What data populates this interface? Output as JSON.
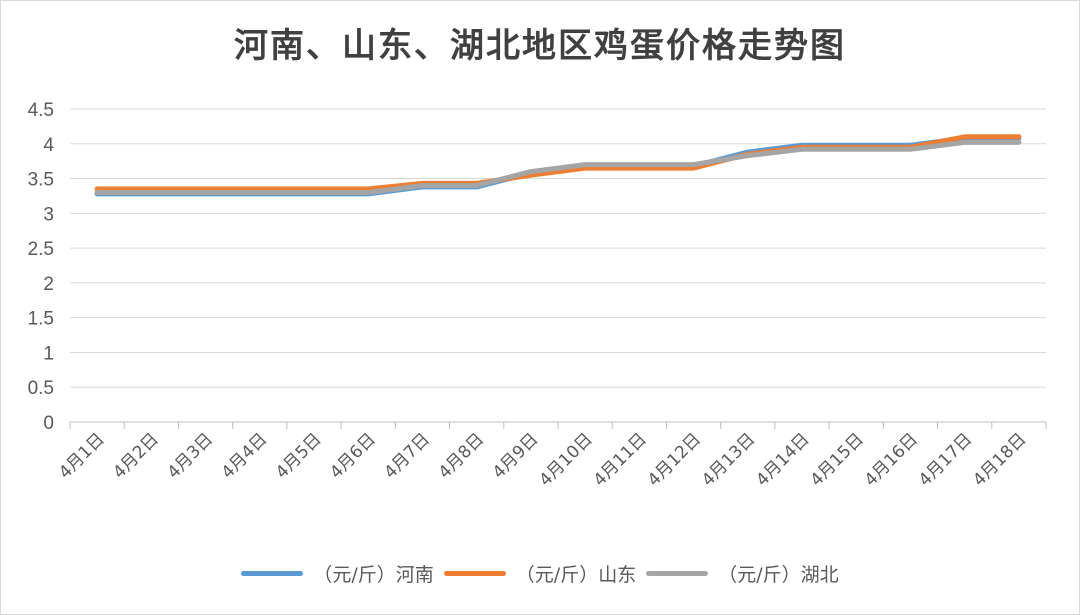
{
  "chart_data": {
    "type": "line",
    "title": "河南、山东、湖北地区鸡蛋价格走势图",
    "xlabel": "",
    "ylabel": "",
    "categories": [
      "4月1日",
      "4月2日",
      "4月3日",
      "4月4日",
      "4月5日",
      "4月6日",
      "4月7日",
      "4月8日",
      "4月9日",
      "4月10日",
      "4月11日",
      "4月12日",
      "4月13日",
      "4月14日",
      "4月15日",
      "4月16日",
      "4月17日",
      "4月18日"
    ],
    "ylim": [
      0,
      4.5
    ],
    "yticks": [
      "0",
      "0.5",
      "1",
      "1.5",
      "2",
      "2.5",
      "3",
      "3.5",
      "4",
      "4.5"
    ],
    "grid": true,
    "legend_position": "bottom",
    "series": [
      {
        "name": "（元/斤）河南",
        "color": "#5b9bd5",
        "values": [
          3.28,
          3.28,
          3.28,
          3.28,
          3.28,
          3.28,
          3.38,
          3.38,
          3.58,
          3.68,
          3.68,
          3.68,
          3.88,
          3.98,
          3.98,
          3.98,
          4.08,
          4.08
        ]
      },
      {
        "name": "（元/斤）山东",
        "color": "#ed7d31",
        "values": [
          3.35,
          3.35,
          3.35,
          3.35,
          3.35,
          3.35,
          3.43,
          3.43,
          3.55,
          3.65,
          3.65,
          3.65,
          3.85,
          3.95,
          3.95,
          3.95,
          4.1,
          4.1
        ]
      },
      {
        "name": "（元/斤）湖北",
        "color": "#a5a5a5",
        "values": [
          3.3,
          3.3,
          3.3,
          3.3,
          3.3,
          3.3,
          3.4,
          3.4,
          3.6,
          3.7,
          3.7,
          3.7,
          3.83,
          3.92,
          3.92,
          3.92,
          4.02,
          4.02
        ]
      }
    ]
  }
}
